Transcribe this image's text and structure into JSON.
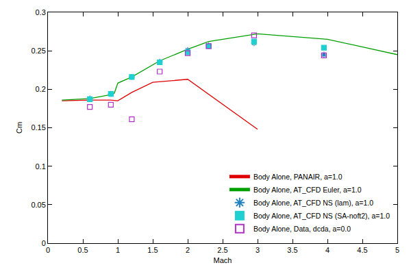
{
  "chart_data": {
    "type": "scatter",
    "x_label": "Mach",
    "y_label": "Cm",
    "xlim": [
      0,
      5
    ],
    "ylim": [
      0,
      0.3
    ],
    "xticks": [
      0,
      0.5,
      1,
      1.5,
      2,
      2.5,
      3,
      3.5,
      4,
      4.5,
      5
    ],
    "yticks": [
      0,
      0.05,
      0.1,
      0.15,
      0.2,
      0.25,
      0.3
    ],
    "grid": false,
    "legend": "lower right",
    "series": [
      {
        "name": "Body Alone, PANAIR, a=1.0",
        "type": "line",
        "color": "#e00000",
        "line_style": "solid",
        "x": [
          0.2,
          0.6,
          0.9,
          1.0,
          1.2,
          1.5,
          2.0,
          3.0
        ],
        "values": [
          0.185,
          0.186,
          0.186,
          0.185,
          0.196,
          0.209,
          0.213,
          0.148
        ]
      },
      {
        "name": "Body Alone, AT_CFD Euler, a=1.0",
        "type": "line",
        "color": "#00a000",
        "line_style": "solid",
        "x": [
          0.2,
          0.6,
          0.9,
          0.95,
          1.0,
          1.2,
          1.6,
          2.0,
          2.3,
          3.0,
          4.0,
          5.0
        ],
        "values": [
          0.186,
          0.188,
          0.193,
          0.195,
          0.208,
          0.216,
          0.237,
          0.252,
          0.262,
          0.272,
          0.265,
          0.245
        ]
      },
      {
        "name": "Body Alone, AT_CFD NS (lam), a=1.0",
        "type": "scatter",
        "color": "#2080c0",
        "marker": "star",
        "x": [
          0.6,
          0.9,
          1.2,
          1.6,
          2.0,
          2.3,
          2.95,
          3.95
        ],
        "values": [
          0.188,
          0.194,
          0.216,
          0.236,
          0.251,
          0.257,
          0.26,
          0.245
        ]
      },
      {
        "name": "Body Alone, AT_CFD NS (SA-noft2), a=1.0",
        "type": "scatter",
        "color": "#20d0d0",
        "marker": "square",
        "x": [
          0.6,
          0.9,
          1.2,
          1.6,
          2.0,
          2.3,
          2.95,
          3.95
        ],
        "values": [
          0.187,
          0.194,
          0.216,
          0.235,
          0.248,
          0.256,
          0.262,
          0.254
        ]
      },
      {
        "name": "Body Alone, Data, dcda, a=0.0",
        "type": "scatter",
        "color": "#b030c8",
        "marker": "square-open",
        "x": [
          0.6,
          0.9,
          1.2,
          1.6,
          2.0,
          2.3,
          2.95,
          3.95
        ],
        "values": [
          0.177,
          0.18,
          0.161,
          0.223,
          0.247,
          0.256,
          0.27,
          0.244
        ]
      }
    ]
  }
}
